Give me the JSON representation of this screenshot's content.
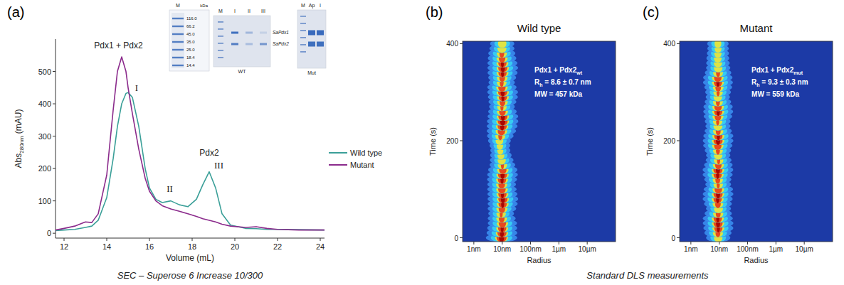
{
  "chart_data": [
    {
      "type": "line",
      "panel": "(a)",
      "caption": "SEC – Superose 6 Increase 10/300",
      "x_label": "Volume (mL)",
      "y_label": [
        "Abs",
        "280nm",
        "(mAU)"
      ],
      "x": [
        11.6,
        12,
        12.5,
        13,
        13.3,
        13.6,
        14,
        14.3,
        14.5,
        14.7,
        14.9,
        15,
        15.2,
        15.5,
        15.8,
        16,
        16.3,
        16.6,
        17,
        17.4,
        17.8,
        18.2,
        18.5,
        18.8,
        19.1,
        19.4,
        19.8,
        20.5,
        21,
        21.5,
        22,
        23,
        24.2
      ],
      "xlim": [
        11.6,
        24.2
      ],
      "xticks": [
        12,
        14,
        16,
        18,
        20,
        22,
        24
      ],
      "ylim": [
        -15,
        600
      ],
      "yticks": [
        0,
        100,
        200,
        300,
        400,
        500
      ],
      "series": [
        {
          "name": "Wild type",
          "color": "#3a9f98",
          "values": [
            8,
            10,
            12,
            18,
            22,
            40,
            110,
            230,
            330,
            400,
            432,
            435,
            420,
            330,
            200,
            140,
            105,
            95,
            100,
            88,
            82,
            105,
            150,
            190,
            140,
            60,
            25,
            15,
            14,
            12,
            12,
            11,
            10
          ]
        },
        {
          "name": "Mutant",
          "color": "#8b2b8c",
          "values": [
            10,
            15,
            22,
            35,
            33,
            60,
            180,
            380,
            500,
            545,
            500,
            450,
            370,
            260,
            170,
            130,
            100,
            85,
            75,
            68,
            60,
            52,
            45,
            40,
            35,
            28,
            22,
            18,
            20,
            15,
            12,
            10,
            10
          ]
        }
      ],
      "legend": "right",
      "annotations": [
        {
          "text": "Pdx1 + Pdx2",
          "x": 14.55,
          "y": 572
        },
        {
          "text": "I",
          "x": 15.4,
          "y": 440
        },
        {
          "text": "II",
          "x": 16.95,
          "y": 128
        },
        {
          "text": "III",
          "x": 19.25,
          "y": 200
        },
        {
          "text": "Pdx2",
          "x": 18.8,
          "y": 240
        }
      ],
      "inset": {
        "gels": [
          {
            "lanes": [
              "M"
            ],
            "unit": "kDa",
            "marker_labels": [
              "116.0",
              "66.2",
              "45.0",
              "35.0",
              "25.0",
              "18.4",
              "14.4"
            ]
          },
          {
            "lanes": [
              "M",
              "I",
              "II",
              "III"
            ],
            "caption": "WT",
            "band_labels": [
              "SaPdx1",
              "SaPdx2"
            ]
          },
          {
            "lanes": [
              "M",
              "Ap",
              "I"
            ],
            "caption": "Mut"
          }
        ]
      }
    },
    {
      "type": "heatmap",
      "panel": "(b)",
      "title": "Wild type",
      "caption": "Standard DLS measurements",
      "x_label": "Radius",
      "y_label": "Time (s)",
      "log": "x",
      "xlim": [
        0.4,
        100000
      ],
      "xticks": [
        {
          "value": 1,
          "label": "1nm"
        },
        {
          "value": 10,
          "label": "10nm"
        },
        {
          "value": 100,
          "label": "100nm"
        },
        {
          "value": 1000,
          "label": "1µm"
        },
        {
          "value": 10000,
          "label": "10µm"
        }
      ],
      "ylim": [
        -8,
        405
      ],
      "yticks": [
        0,
        200,
        400
      ],
      "time": [
        0,
        10,
        20,
        30,
        40,
        50,
        60,
        70,
        80,
        90,
        100,
        110,
        120,
        130,
        140,
        150,
        160,
        170,
        180,
        190,
        200,
        210,
        220,
        230,
        240,
        250,
        260,
        270,
        280,
        290,
        300,
        310,
        320,
        330,
        340,
        350,
        360,
        370,
        380,
        390,
        400
      ],
      "peak_radius": [
        9.5,
        9.8,
        10,
        10.2,
        9.6,
        9.2,
        9.8,
        10.4,
        10.6,
        10.2,
        9.8,
        9.6,
        9.9,
        10.3,
        10.5,
        10.2,
        9.6,
        9.0,
        8.6,
        8.3,
        8.0,
        8.6,
        9.4,
        10,
        10.4,
        10.6,
        10.2,
        9.8,
        10.2,
        10.6,
        10.4,
        9.8,
        9.6,
        10,
        10.3,
        10.5,
        10.2,
        9.9,
        9.7,
        9.8,
        10
      ],
      "intensity": [
        1,
        0.95,
        0.9,
        0.85,
        0.75,
        0.6,
        0.8,
        0.9,
        0.95,
        0.9,
        0.85,
        0.8,
        0.9,
        0.95,
        0.85,
        0.6,
        0.45,
        0.3,
        0.2,
        0.25,
        0.4,
        0.65,
        0.85,
        0.95,
        1,
        0.95,
        0.8,
        0.6,
        0.75,
        0.9,
        0.95,
        0.85,
        0.65,
        0.75,
        0.9,
        0.95,
        0.9,
        0.8,
        0.7,
        0.55,
        0.5
      ],
      "annotations": [
        [
          "Pdx1 + Pdx2",
          "wt"
        ],
        [
          "R",
          "h",
          " = 8.6 ± 0.7 nm"
        ],
        [
          "MW = 457 kDa"
        ]
      ]
    },
    {
      "type": "heatmap",
      "panel": "(c)",
      "title": "Mutant",
      "x_label": "Radius",
      "y_label": "Time (s)",
      "log": "x",
      "xlim": [
        0.4,
        100000
      ],
      "xticks": [
        {
          "value": 1,
          "label": "1nm"
        },
        {
          "value": 10,
          "label": "10nm"
        },
        {
          "value": 100,
          "label": "100nm"
        },
        {
          "value": 1000,
          "label": "1µm"
        },
        {
          "value": 10000,
          "label": "10µm"
        }
      ],
      "ylim": [
        -8,
        405
      ],
      "yticks": [
        0,
        200,
        400
      ],
      "time": [
        0,
        10,
        20,
        30,
        40,
        50,
        60,
        70,
        80,
        90,
        100,
        110,
        120,
        130,
        140,
        150,
        160,
        170,
        180,
        190,
        200,
        210,
        220,
        230,
        240,
        250,
        260,
        270,
        280,
        290,
        300,
        310,
        320,
        330,
        340,
        350,
        360,
        370,
        380,
        390,
        400
      ],
      "peak_radius": [
        9.2,
        9.0,
        9.3,
        9.1,
        8.9,
        9.2,
        9.4,
        9.0,
        8.8,
        9.1,
        9.3,
        9.2,
        8.9,
        8.8,
        9.0,
        9.3,
        9.5,
        9.2,
        9.0,
        8.9,
        9.1,
        9.3,
        9.2,
        9.0,
        8.8,
        9.0,
        9.2,
        9.1,
        9.0,
        8.9,
        9.1,
        9.2,
        9.0,
        8.9,
        9.1,
        9.2,
        9.0,
        8.9,
        9.0,
        9.1,
        9.0
      ],
      "intensity": [
        0.5,
        0.7,
        0.9,
        0.95,
        0.9,
        0.7,
        0.55,
        0.75,
        0.9,
        0.95,
        0.85,
        0.6,
        0.7,
        0.9,
        0.95,
        0.8,
        0.6,
        0.5,
        0.65,
        0.85,
        0.95,
        0.9,
        0.7,
        0.55,
        0.6,
        0.8,
        0.9,
        0.85,
        0.65,
        0.5,
        0.6,
        0.75,
        0.9,
        0.85,
        0.65,
        0.5,
        0.45,
        0.4,
        0.35,
        0.3,
        0.3
      ],
      "annotations": [
        [
          "Pdx1 + Pdx2",
          "mut"
        ],
        [
          "R",
          "h",
          " = 9.3 ± 0.3 nm"
        ],
        [
          "MW = 559 kDa"
        ]
      ]
    }
  ]
}
